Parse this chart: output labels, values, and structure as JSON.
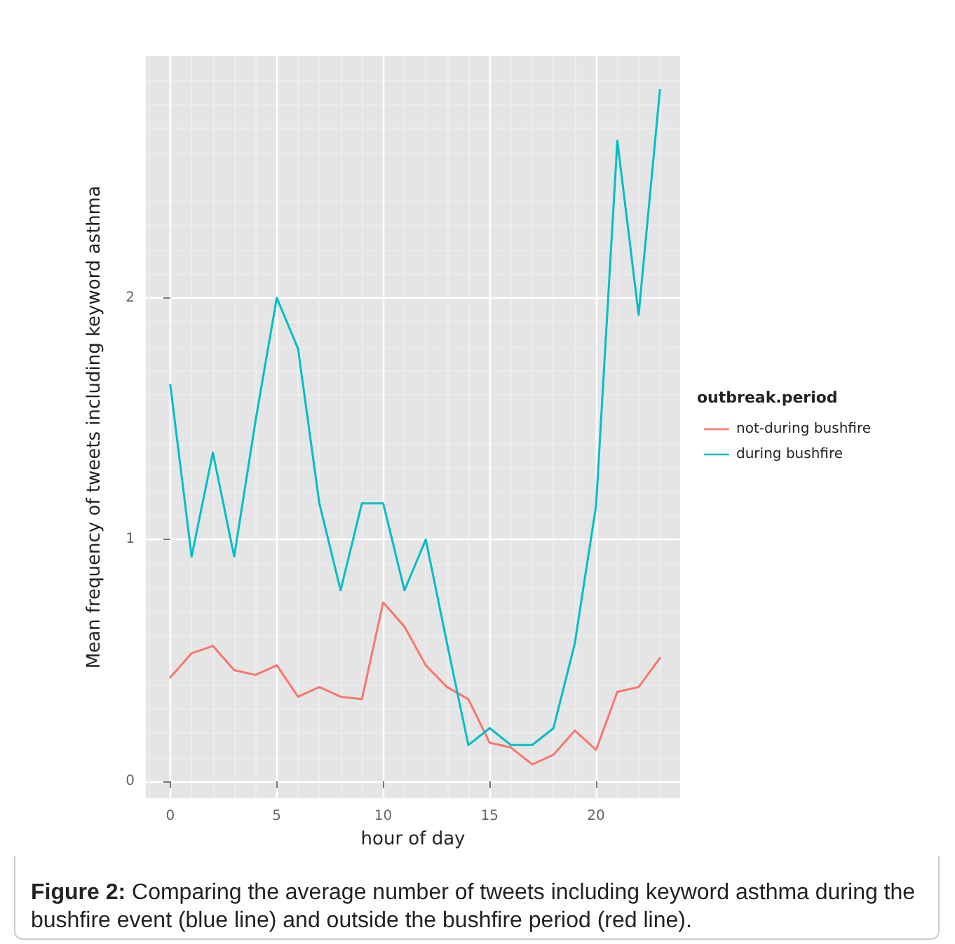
{
  "chart_data": {
    "type": "line",
    "xlabel": "hour of day",
    "ylabel": "Mean frequency of tweets including keyword asthma",
    "legend_title": "outbreak.period",
    "x": [
      0,
      1,
      2,
      3,
      4,
      5,
      6,
      7,
      8,
      9,
      10,
      11,
      12,
      13,
      14,
      15,
      16,
      17,
      18,
      19,
      20,
      21,
      22,
      23
    ],
    "series": [
      {
        "name": "not-during bushfire",
        "color": "#f8766d",
        "values": [
          0.43,
          0.53,
          0.56,
          0.46,
          0.44,
          0.48,
          0.35,
          0.39,
          0.35,
          0.34,
          0.74,
          0.64,
          0.48,
          0.39,
          0.34,
          0.16,
          0.14,
          0.07,
          0.11,
          0.21,
          0.13,
          0.37,
          0.39,
          0.51
        ]
      },
      {
        "name": "during bushfire",
        "color": "#00bfc4",
        "values": [
          1.64,
          0.93,
          1.36,
          0.93,
          1.49,
          2.0,
          1.79,
          1.15,
          0.79,
          1.15,
          1.15,
          0.79,
          1.0,
          0.57,
          0.15,
          0.22,
          0.15,
          0.15,
          0.22,
          0.57,
          1.14,
          2.65,
          1.93,
          2.86
        ]
      }
    ],
    "xlim": [
      -1.15,
      23.95
    ],
    "ylim": [
      -0.07,
      3.0
    ],
    "xticks": [
      0,
      5,
      10,
      15,
      20
    ],
    "yticks": [
      0,
      1,
      2
    ],
    "grid": true,
    "legend": "right",
    "marker": "none",
    "line_style": "solid",
    "annotations": [
      "Figure 2:",
      "Comparing the average number of tweets including keyword asthma during the bushfire event (blue line) and outside the bushfire period (red line)."
    ]
  }
}
